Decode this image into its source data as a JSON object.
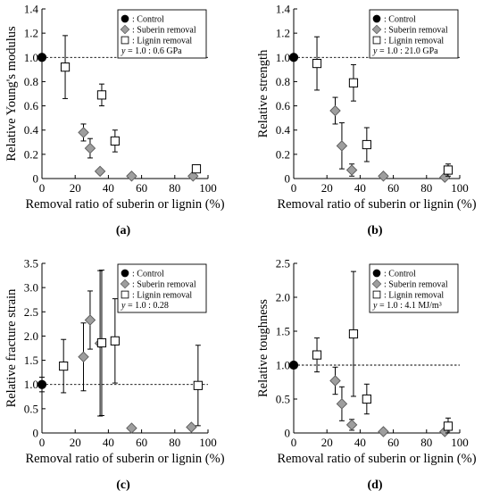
{
  "figure": {
    "legend_labels": {
      "control": ": Control",
      "suberin": ": Suberin removal",
      "lignin": ": Lignin removal"
    },
    "colors": {
      "control": "#000000",
      "suberin": "#9e9e9e",
      "lignin": "#ffffff",
      "axis": "#000000"
    }
  },
  "chart_data": [
    {
      "type": "scatter",
      "panel_label": "(a)",
      "xlabel": "Removal ratio of suberin or lignin (%)",
      "ylabel": "Relative Young's modulus",
      "xlim": [
        0,
        100
      ],
      "ylim": [
        0,
        1.4
      ],
      "xticks": [
        0,
        20,
        40,
        60,
        80,
        100
      ],
      "yticks": [
        0,
        0.2,
        0.4,
        0.6,
        0.8,
        1.0,
        1.2,
        1.4
      ],
      "ytick_decimals": 1,
      "grid": false,
      "legend_position": "top-right",
      "reference": {
        "y": 1.0,
        "label_y": "y",
        "label_rest": " = 1.0 : 0.6 GPa"
      },
      "series": [
        {
          "name": "Control",
          "marker": "circle",
          "points": [
            {
              "x": 0,
              "y": 1.0,
              "err": 0
            }
          ]
        },
        {
          "name": "Suberin removal",
          "marker": "diamond",
          "points": [
            {
              "x": 25,
              "y": 0.38,
              "err": 0.07
            },
            {
              "x": 29,
              "y": 0.25,
              "err": 0.08
            },
            {
              "x": 35,
              "y": 0.06,
              "err": 0.02
            },
            {
              "x": 54,
              "y": 0.02,
              "err": 0
            },
            {
              "x": 91,
              "y": 0.02,
              "err": 0
            }
          ]
        },
        {
          "name": "Lignin removal",
          "marker": "square",
          "points": [
            {
              "x": 14,
              "y": 0.92,
              "err": 0.26
            },
            {
              "x": 36,
              "y": 0.69,
              "err": 0.09
            },
            {
              "x": 44,
              "y": 0.31,
              "err": 0.09
            },
            {
              "x": 93,
              "y": 0.08,
              "err": 0.02
            }
          ]
        }
      ]
    },
    {
      "type": "scatter",
      "panel_label": "(b)",
      "xlabel": "Removal ratio of suberin or lignin (%)",
      "ylabel": "Relative strength",
      "xlim": [
        0,
        100
      ],
      "ylim": [
        0,
        1.4
      ],
      "xticks": [
        0,
        20,
        40,
        60,
        80,
        100
      ],
      "yticks": [
        0,
        0.2,
        0.4,
        0.6,
        0.8,
        1.0,
        1.2,
        1.4
      ],
      "ytick_decimals": 1,
      "grid": false,
      "legend_position": "top-right",
      "reference": {
        "y": 1.0,
        "label_y": "y",
        "label_rest": " = 1.0 : 21.0 GPa"
      },
      "series": [
        {
          "name": "Control",
          "marker": "circle",
          "points": [
            {
              "x": 0,
              "y": 1.0,
              "err": 0
            }
          ]
        },
        {
          "name": "Suberin removal",
          "marker": "diamond",
          "points": [
            {
              "x": 25,
              "y": 0.56,
              "err": 0.11
            },
            {
              "x": 29,
              "y": 0.27,
              "err": 0.19
            },
            {
              "x": 35,
              "y": 0.07,
              "err": 0.05
            },
            {
              "x": 54,
              "y": 0.02,
              "err": 0
            },
            {
              "x": 91,
              "y": 0.01,
              "err": 0
            }
          ]
        },
        {
          "name": "Lignin removal",
          "marker": "square",
          "points": [
            {
              "x": 14,
              "y": 0.95,
              "err": 0.22
            },
            {
              "x": 36,
              "y": 0.79,
              "err": 0.15
            },
            {
              "x": 44,
              "y": 0.28,
              "err": 0.14
            },
            {
              "x": 93,
              "y": 0.07,
              "err": 0.05
            }
          ]
        }
      ]
    },
    {
      "type": "scatter",
      "panel_label": "(c)",
      "xlabel": "Removal ratio of suberin or lignin (%)",
      "ylabel": "Relative fracture strain",
      "xlim": [
        0,
        100
      ],
      "ylim": [
        0,
        3.5
      ],
      "xticks": [
        0,
        20,
        40,
        60,
        80,
        100
      ],
      "yticks": [
        0,
        0.5,
        1.0,
        1.5,
        2.0,
        2.5,
        3.0,
        3.5
      ],
      "ytick_decimals": 1,
      "grid": false,
      "legend_position": "top-right",
      "reference": {
        "y": 1.0,
        "label_y": "y",
        "label_rest": " = 1.0 : 0.28"
      },
      "series": [
        {
          "name": "Control",
          "marker": "circle",
          "points": [
            {
              "x": 0,
              "y": 1.0,
              "err": 0.15
            }
          ]
        },
        {
          "name": "Suberin removal",
          "marker": "diamond",
          "points": [
            {
              "x": 25,
              "y": 1.57,
              "err": 0.7
            },
            {
              "x": 29,
              "y": 2.33,
              "err": 0.6
            },
            {
              "x": 35,
              "y": 1.85,
              "err": 1.5
            },
            {
              "x": 54,
              "y": 0.1,
              "err": 0
            },
            {
              "x": 90,
              "y": 0.12,
              "err": 0
            }
          ]
        },
        {
          "name": "Lignin removal",
          "marker": "square",
          "points": [
            {
              "x": 13,
              "y": 1.38,
              "err": 0.55
            },
            {
              "x": 36,
              "y": 1.86,
              "err": 1.5
            },
            {
              "x": 44,
              "y": 1.9,
              "err": 0.87
            },
            {
              "x": 94,
              "y": 0.98,
              "err": 0.83
            }
          ]
        }
      ]
    },
    {
      "type": "scatter",
      "panel_label": "(d)",
      "xlabel": "Removal ratio of suberin or lignin (%)",
      "ylabel": "Relative toughness",
      "xlim": [
        0,
        100
      ],
      "ylim": [
        0,
        2.5
      ],
      "xticks": [
        0,
        20,
        40,
        60,
        80,
        100
      ],
      "yticks": [
        0,
        0.5,
        1.0,
        1.5,
        2.0,
        2.5
      ],
      "ytick_decimals": 1,
      "grid": false,
      "legend_position": "top-right",
      "reference": {
        "y": 1.0,
        "label_y": "y",
        "label_rest": " = 1.0 : 4.1 MJ/m³"
      },
      "series": [
        {
          "name": "Control",
          "marker": "circle",
          "points": [
            {
              "x": 0,
              "y": 1.0,
              "err": 0
            }
          ]
        },
        {
          "name": "Suberin removal",
          "marker": "diamond",
          "points": [
            {
              "x": 25,
              "y": 0.77,
              "err": 0.2
            },
            {
              "x": 29,
              "y": 0.43,
              "err": 0.25
            },
            {
              "x": 35,
              "y": 0.12,
              "err": 0.08
            },
            {
              "x": 54,
              "y": 0.02,
              "err": 0
            },
            {
              "x": 91,
              "y": 0.02,
              "err": 0
            }
          ]
        },
        {
          "name": "Lignin removal",
          "marker": "square",
          "points": [
            {
              "x": 14,
              "y": 1.15,
              "err": 0.25
            },
            {
              "x": 36,
              "y": 1.46,
              "err": 0.92
            },
            {
              "x": 44,
              "y": 0.5,
              "err": 0.22
            },
            {
              "x": 93,
              "y": 0.1,
              "err": 0.12
            }
          ]
        }
      ]
    }
  ]
}
